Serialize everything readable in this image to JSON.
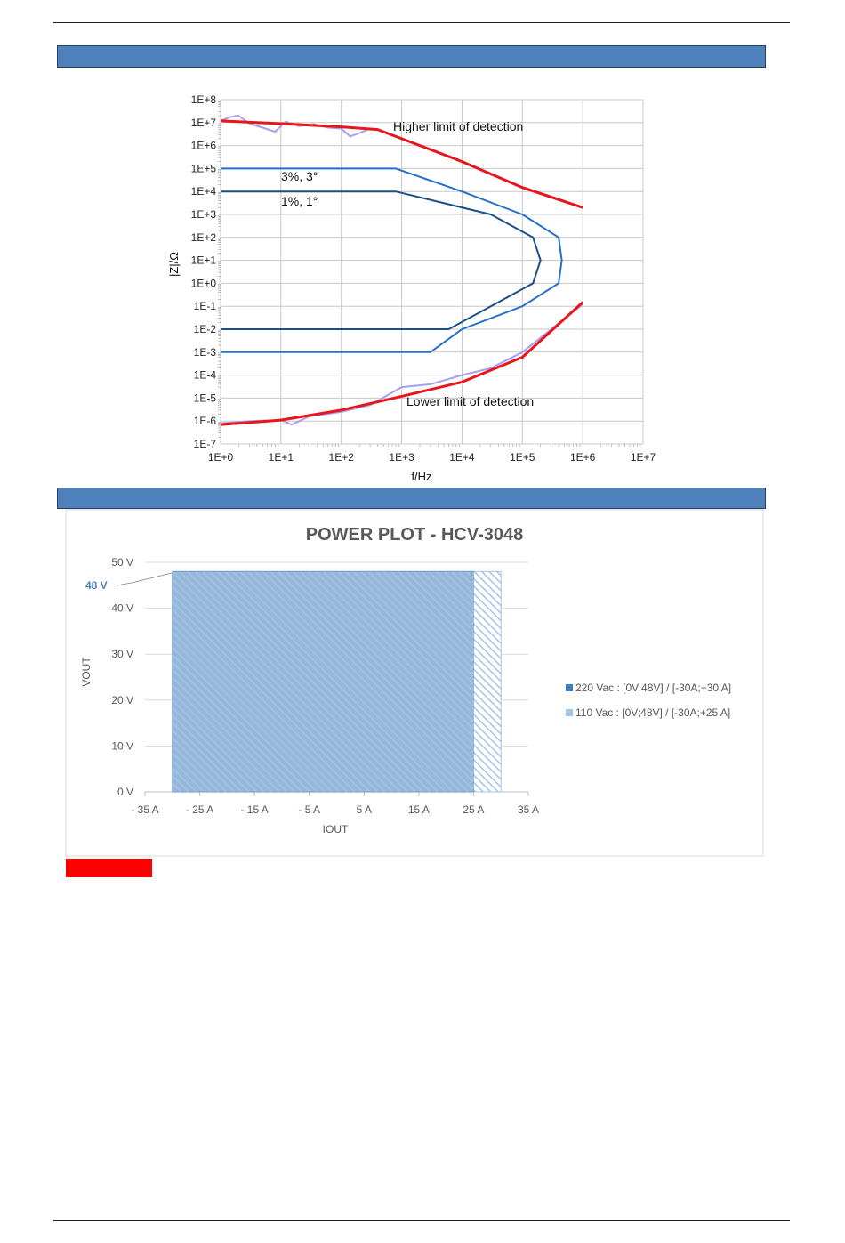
{
  "chart_data": [
    {
      "type": "line",
      "title": "",
      "xlabel": "f/Hz",
      "ylabel": "|Z|/Ω",
      "x_scale": "log",
      "y_scale": "log",
      "xlim": [
        1,
        10000000
      ],
      "ylim": [
        1e-07,
        100000000
      ],
      "grid": true,
      "x_ticks": [
        "1E+0",
        "1E+1",
        "1E+2",
        "1E+3",
        "1E+4",
        "1E+5",
        "1E+6",
        "1E+7"
      ],
      "y_ticks": [
        "1E-7",
        "1E-6",
        "1E-5",
        "1E-4",
        "1E-3",
        "1E-2",
        "1E-1",
        "1E+0",
        "1E+1",
        "1E+2",
        "1E+3",
        "1E+4",
        "1E+5",
        "1E+6",
        "1E+7",
        "1E+8"
      ],
      "annotations": {
        "upper_limit": "Higher limit of detection",
        "lower_limit": "Lower limit of detection",
        "acc3": "3%, 3°",
        "acc1": "1%, 1°"
      },
      "series": [
        {
          "role": "upper-limit",
          "color": "#e8161b",
          "x": [
            1,
            10,
            100,
            400,
            10000,
            100000,
            1000000
          ],
          "y": [
            12000000,
            9000000,
            6500000,
            5000000,
            200000,
            15000,
            2000
          ]
        },
        {
          "role": "upper-limit-measured",
          "color": "#a89ef0",
          "x": [
            1,
            1.5,
            2,
            3,
            5,
            8,
            12,
            20,
            35,
            60,
            100,
            140,
            200,
            300,
            400
          ],
          "y": [
            12000000,
            18000000,
            20000000,
            9000000,
            6000000,
            4000000,
            11000000,
            7000000,
            8500000,
            6000000,
            5500000,
            2500000,
            3500000,
            5500000,
            5000000
          ]
        },
        {
          "role": "accuracy-3pct",
          "color": "#2470c9",
          "x": [
            1,
            800,
            10000,
            100000,
            400000,
            450000,
            400000,
            100000,
            10000,
            3000,
            1
          ],
          "y": [
            100000,
            100000,
            10000,
            1000,
            100,
            10,
            1,
            0.1,
            0.01,
            0.001,
            0.001
          ]
        },
        {
          "role": "accuracy-1pct",
          "color": "#1a4f8a",
          "x": [
            1,
            800,
            30000,
            150000,
            200000,
            150000,
            30000,
            6000,
            1
          ],
          "y": [
            10000,
            10000,
            1000,
            100,
            10,
            1,
            0.1,
            0.01,
            0.01
          ]
        },
        {
          "role": "lower-limit",
          "color": "#e8161b",
          "x": [
            1,
            10,
            100,
            1000,
            10000,
            100000,
            1000000
          ],
          "y": 7e-07,
          "y_values": [
            7e-07,
            1.1e-06,
            3e-06,
            1.2e-05,
            5e-05,
            0.0006,
            0.15
          ]
        },
        {
          "role": "lower-limit-measured",
          "color": "#a89ef0",
          "x": [
            1,
            3,
            10,
            15,
            30,
            100,
            300,
            1000,
            3000,
            10000,
            30000,
            100000,
            300000,
            1000000
          ],
          "y": [
            8e-07,
            1e-06,
            1.1e-06,
            7e-07,
            1.6e-06,
            2.5e-06,
            5e-06,
            3e-05,
            4e-05,
            0.0001,
            0.0002,
            0.001,
            0.01,
            0.12
          ]
        }
      ]
    },
    {
      "type": "area",
      "title": "POWER PLOT - HCV-3048",
      "xlabel": "IOUT",
      "ylabel": "VOUT",
      "xlim": [
        -35,
        35
      ],
      "ylim": [
        0,
        50
      ],
      "x_ticks": [
        "- 35 A",
        "- 25 A",
        "- 15 A",
        "- 5 A",
        "5 A",
        "15 A",
        "25 A",
        "35 A"
      ],
      "y_ticks": [
        "0 V",
        "10 V",
        "20 V",
        "30 V",
        "40 V",
        "50 V"
      ],
      "annotation": "48 V",
      "legend_position": "right",
      "series": [
        {
          "name": "220 Vac : [0V;48V] / [-30A;+30 A]",
          "color": "#3f7fbf",
          "x_range": [
            -30,
            30
          ],
          "y_range": [
            0,
            48
          ]
        },
        {
          "name": "110 Vac : [0V;48V] / [-30A;+25 A]",
          "color": "#a7c4e6",
          "x_range": [
            -30,
            25
          ],
          "y_range": [
            0,
            48
          ]
        }
      ]
    }
  ]
}
